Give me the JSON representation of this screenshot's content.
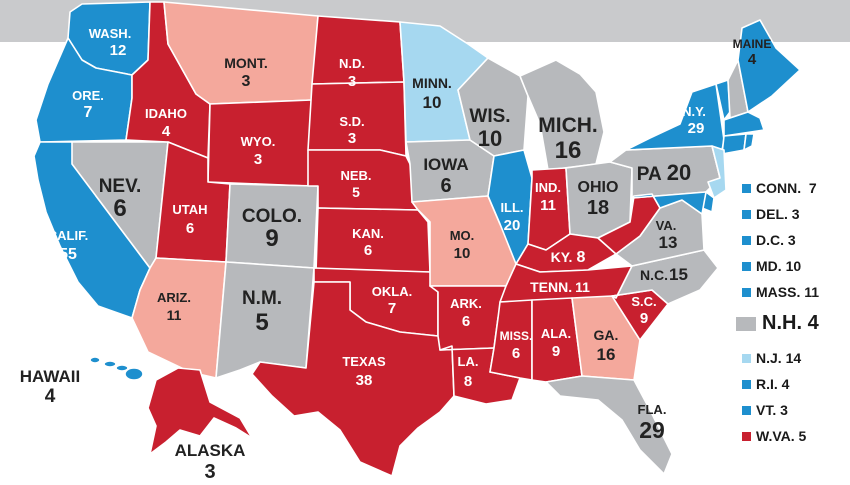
{
  "colors": {
    "blue": "#1e8fce",
    "light_blue": "#a6d8f0",
    "red": "#c8202f",
    "pink": "#f4a89c",
    "gray": "#b7b9bc"
  },
  "states": {
    "wa": {
      "name": "WASH.",
      "votes": "12",
      "color": "blue"
    },
    "or": {
      "name": "ORE.",
      "votes": "7",
      "color": "blue"
    },
    "ca": {
      "name": "CALIF.",
      "votes": "55",
      "color": "blue"
    },
    "nv": {
      "name": "NEV.",
      "votes": "6",
      "color": "gray"
    },
    "id": {
      "name": "IDAHO",
      "votes": "4",
      "color": "red"
    },
    "mt": {
      "name": "MONT.",
      "votes": "3",
      "color": "pink"
    },
    "wy": {
      "name": "WYO.",
      "votes": "3",
      "color": "red"
    },
    "ut": {
      "name": "UTAH",
      "votes": "6",
      "color": "red"
    },
    "co": {
      "name": "COLO.",
      "votes": "9",
      "color": "gray"
    },
    "az": {
      "name": "ARIZ.",
      "votes": "11",
      "color": "pink"
    },
    "nm": {
      "name": "N.M.",
      "votes": "5",
      "color": "gray"
    },
    "nd": {
      "name": "N.D.",
      "votes": "3",
      "color": "red"
    },
    "sd": {
      "name": "S.D.",
      "votes": "3",
      "color": "red"
    },
    "ne": {
      "name": "NEB.",
      "votes": "5",
      "color": "red"
    },
    "ks": {
      "name": "KAN.",
      "votes": "6",
      "color": "red"
    },
    "ok": {
      "name": "OKLA.",
      "votes": "7",
      "color": "red"
    },
    "tx": {
      "name": "TEXAS",
      "votes": "38",
      "color": "red"
    },
    "mn": {
      "name": "MINN.",
      "votes": "10",
      "color": "light_blue"
    },
    "ia": {
      "name": "IOWA",
      "votes": "6",
      "color": "gray"
    },
    "mo": {
      "name": "MO.",
      "votes": "10",
      "color": "pink"
    },
    "ar": {
      "name": "ARK.",
      "votes": "6",
      "color": "red"
    },
    "la": {
      "name": "LA.",
      "votes": "8",
      "color": "red"
    },
    "wi": {
      "name": "WIS.",
      "votes": "10",
      "color": "gray"
    },
    "il": {
      "name": "ILL.",
      "votes": "20",
      "color": "blue"
    },
    "mi": {
      "name": "MICH.",
      "votes": "16",
      "color": "gray"
    },
    "in": {
      "name": "IND.",
      "votes": "11",
      "color": "red"
    },
    "oh": {
      "name": "OHIO",
      "votes": "18",
      "color": "gray"
    },
    "ky": {
      "name": "KY.",
      "votes": "8",
      "color": "red"
    },
    "tn": {
      "name": "TENN.",
      "votes": "11",
      "color": "red"
    },
    "ms": {
      "name": "MISS.",
      "votes": "6",
      "color": "red"
    },
    "al": {
      "name": "ALA.",
      "votes": "9",
      "color": "red"
    },
    "ga": {
      "name": "GA.",
      "votes": "16",
      "color": "pink"
    },
    "fl": {
      "name": "FLA.",
      "votes": "29",
      "color": "gray"
    },
    "sc": {
      "name": "S.C.",
      "votes": "9",
      "color": "red"
    },
    "nc": {
      "name": "N.C.",
      "votes": "15",
      "color": "gray"
    },
    "va": {
      "name": "VA.",
      "votes": "13",
      "color": "gray"
    },
    "wv": {
      "color": "red"
    },
    "pa": {
      "name": "PA",
      "votes": "20",
      "color": "gray"
    },
    "ny": {
      "name": "N.Y.",
      "votes": "29",
      "color": "blue"
    },
    "me": {
      "name": "MAINE",
      "votes": "4",
      "color": "blue"
    },
    "hi": {
      "name": "HAWAII",
      "votes": "4",
      "color": "blue"
    },
    "ak": {
      "name": "ALASKA",
      "votes": "3",
      "color": "red"
    }
  },
  "legend": [
    {
      "name": "CONN.",
      "votes": "7",
      "color": "blue"
    },
    {
      "name": "DEL.",
      "votes": "3",
      "color": "blue"
    },
    {
      "name": "D.C.",
      "votes": "3",
      "color": "blue"
    },
    {
      "name": "MD.",
      "votes": "10",
      "color": "blue"
    },
    {
      "name": "MASS.",
      "votes": "11",
      "color": "blue"
    },
    {
      "name": "N.H.",
      "votes": "4",
      "color": "gray"
    },
    {
      "name": "N.J.",
      "votes": "14",
      "color": "light_blue"
    },
    {
      "name": "R.I.",
      "votes": "4",
      "color": "blue"
    },
    {
      "name": "VT.",
      "votes": "3",
      "color": "blue"
    },
    {
      "name": "W.VA.",
      "votes": "5",
      "color": "red"
    }
  ]
}
